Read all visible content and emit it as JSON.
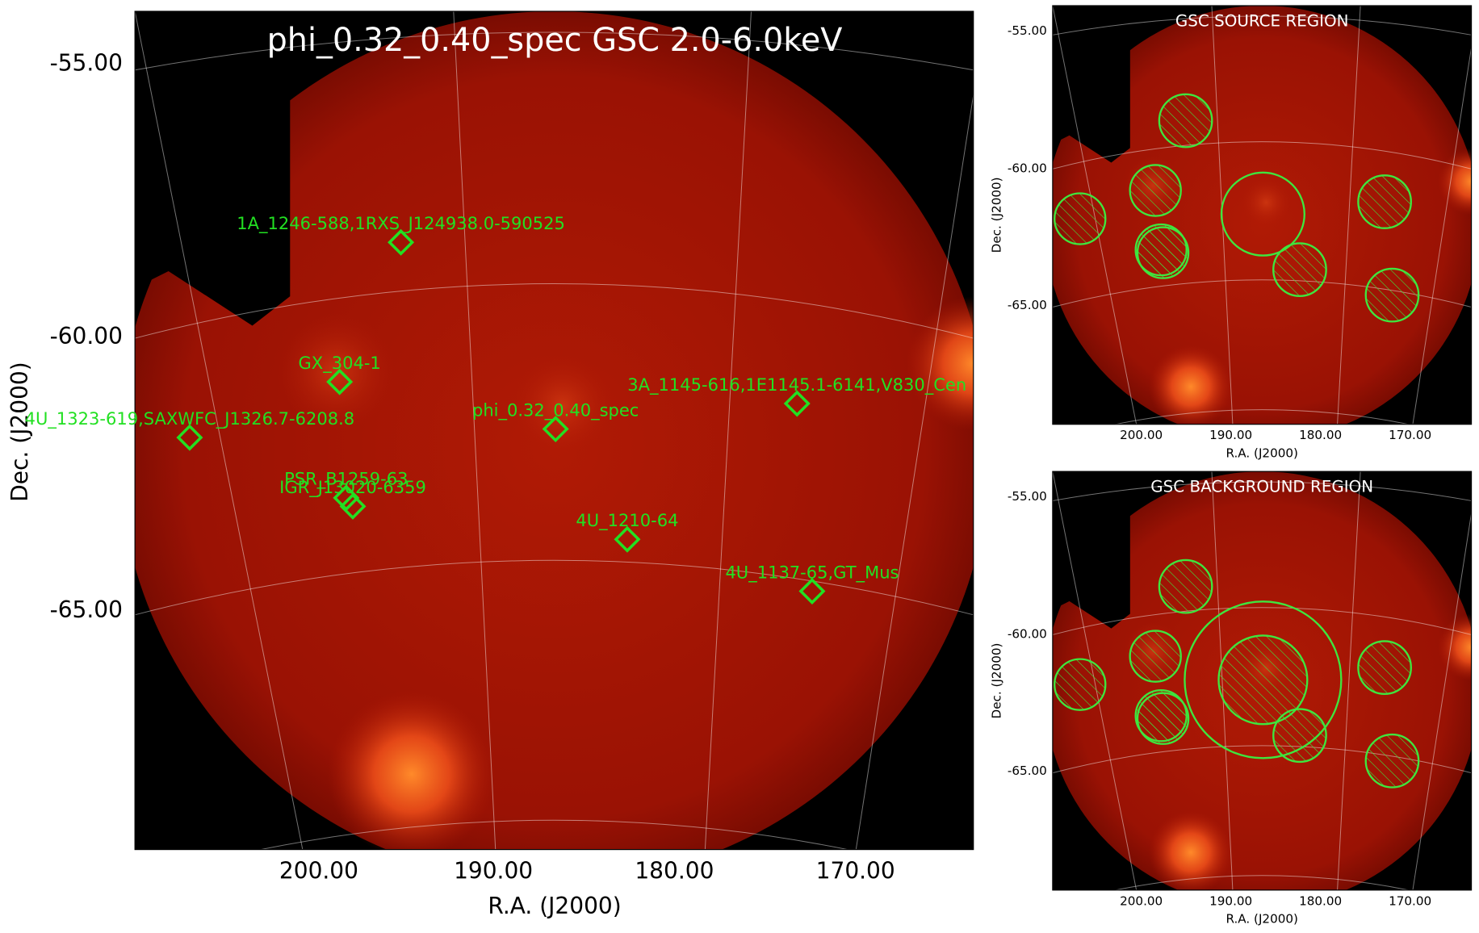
{
  "main": {
    "title": "phi_0.32_0.40_spec GSC 2.0-6.0keV",
    "x_label": "R.A. (J2000)",
    "y_label": "Dec. (J2000)",
    "x_ticks": [
      "200.00",
      "190.00",
      "180.00",
      "170.00"
    ],
    "y_ticks": [
      "-55.00",
      "-60.00",
      "-65.00"
    ],
    "sources": [
      "1A_1246-588,1RXS_J124938.0-590525",
      "GX_304-1",
      "4U_1323-619,SAXWFC_J1326.7-6208.8",
      "phi_0.32_0.40_spec",
      "3A_1145-616,1E1145.1-6141,V830_Cen",
      "PSR_B1259-63",
      "IGR_J13020-6359",
      "4U_1210-64",
      "4U_1137-65,GT_Mus"
    ]
  },
  "panels": [
    {
      "title": "GSC SOURCE REGION",
      "x_label": "R.A. (J2000)",
      "y_label": "Dec. (J2000)",
      "x_ticks": [
        "200.00",
        "190.00",
        "180.00",
        "170.00"
      ],
      "y_ticks": [
        "-55.00",
        "-60.00",
        "-65.00"
      ]
    },
    {
      "title": "GSC BACKGROUND REGION",
      "x_label": "R.A. (J2000)",
      "y_label": "Dec. (J2000)",
      "x_ticks": [
        "200.00",
        "190.00",
        "180.00",
        "170.00"
      ],
      "y_ticks": [
        "-55.00",
        "-60.00",
        "-65.00"
      ]
    }
  ]
}
